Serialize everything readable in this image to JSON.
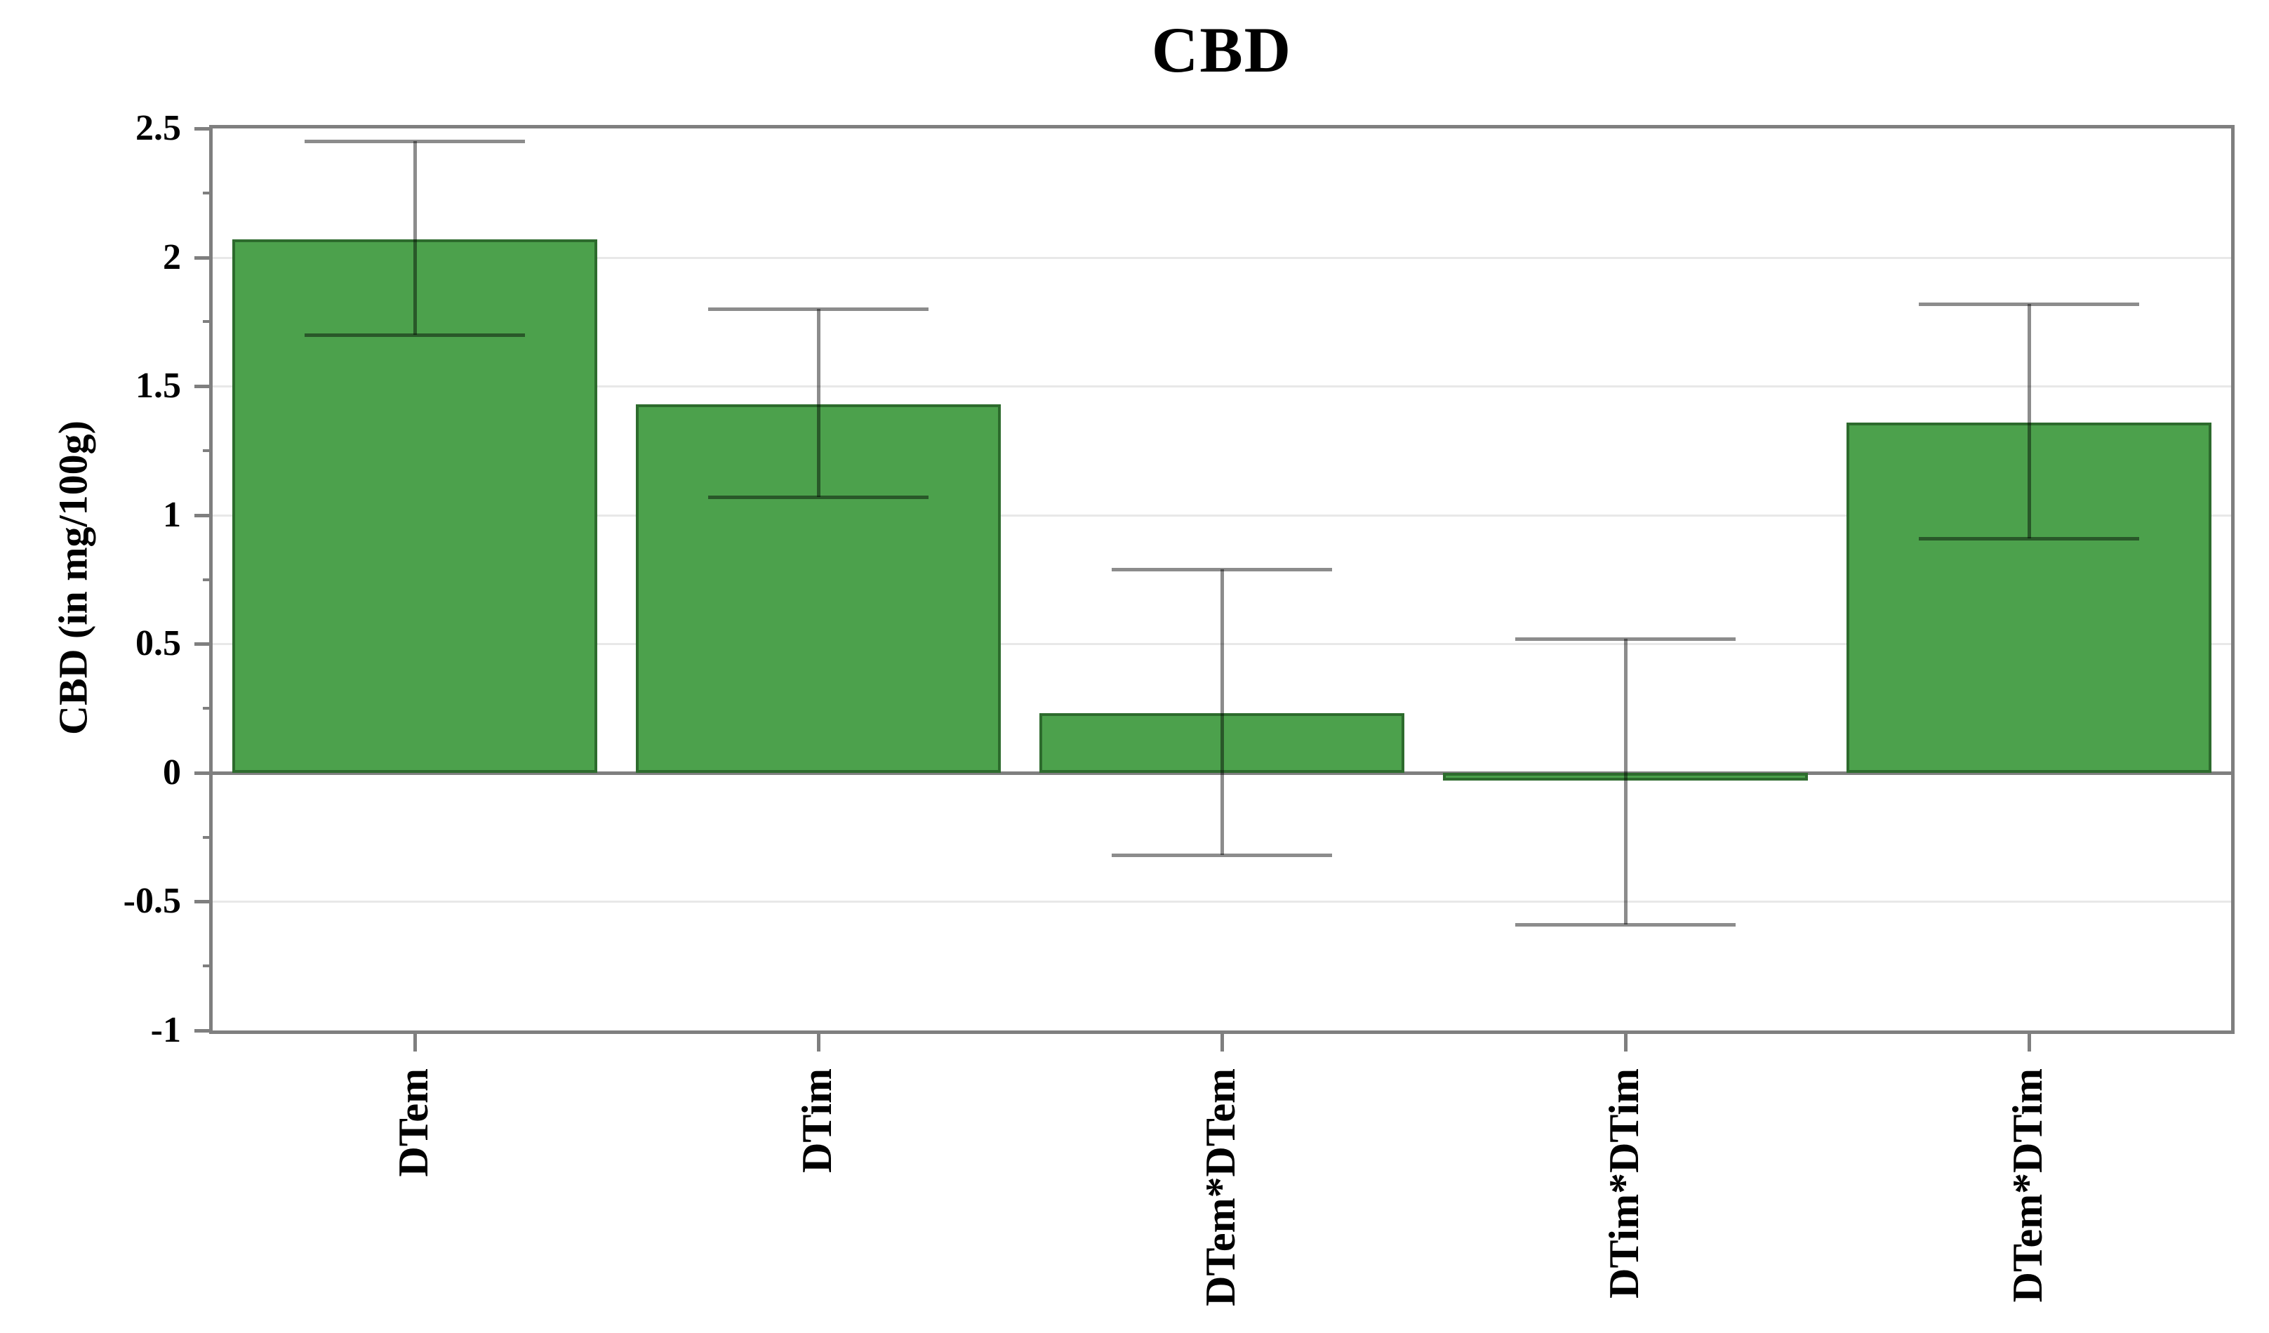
{
  "page": {
    "background": "#ffffff"
  },
  "chart_data": {
    "type": "bar",
    "title": "CBD",
    "ylabel": "CBD (in mg/100g)",
    "xlabel": "",
    "categories": [
      "DTem",
      "DTim",
      "DTem*DTem",
      "DTim*DTim",
      "DTem*DTim"
    ],
    "values": [
      2.07,
      1.43,
      0.23,
      -0.03,
      1.36
    ],
    "error_high": [
      2.45,
      1.8,
      0.79,
      0.52,
      1.82
    ],
    "error_low": [
      1.7,
      1.07,
      -0.32,
      -0.59,
      0.91
    ],
    "ylim": [
      -1,
      2.5
    ],
    "yticks": [
      2.5,
      2,
      1.5,
      1,
      0.5,
      0,
      -0.5,
      -1
    ],
    "ytick_labels": [
      "2.5",
      "2",
      "1.5",
      "1",
      "0.5",
      "0",
      "-0.5",
      "-1"
    ],
    "minor_tick_step": 0.25,
    "grid": "horizontal-major-only",
    "legend_position": "none",
    "colors": {
      "bar_fill": "#4ca14c",
      "bar_border": "#2d6b2d",
      "axis": "#7f7f7f",
      "gridline": "#e8e8e8",
      "error_bar": "rgba(0,0,0,0.45)",
      "text": "#000000"
    }
  }
}
